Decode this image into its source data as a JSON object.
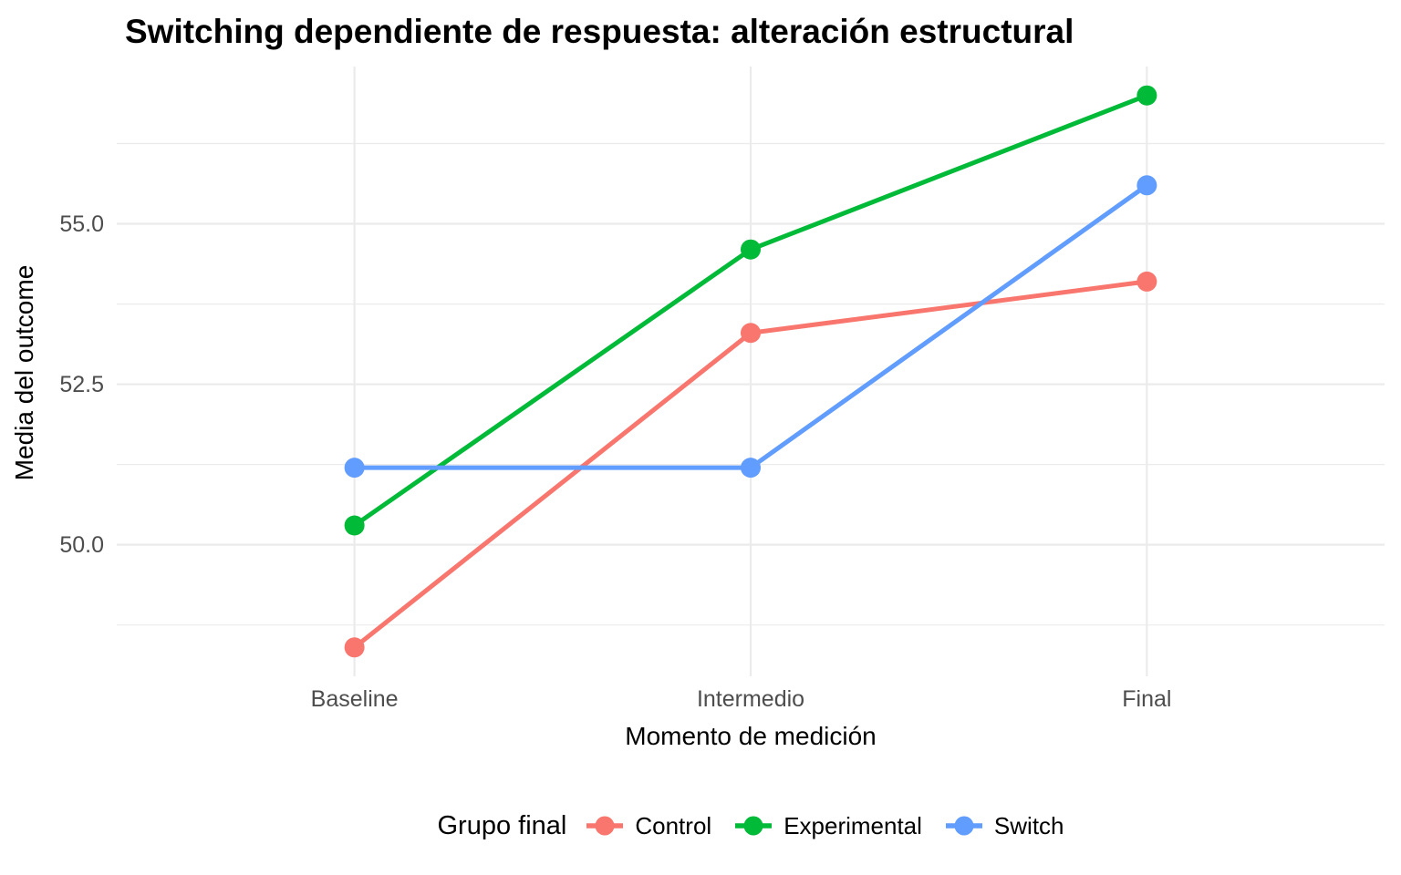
{
  "chart_data": {
    "type": "line",
    "title": "Switching dependiente de respuesta: alteración estructural",
    "xlabel": "Momento de medición",
    "ylabel": "Media del outcome",
    "legend_title": "Grupo final",
    "legend_position": "bottom",
    "categories": [
      "Baseline",
      "Intermedio",
      "Final"
    ],
    "series": [
      {
        "name": "Control",
        "color": "#F8766D",
        "values": [
          48.4,
          53.3,
          54.1
        ]
      },
      {
        "name": "Experimental",
        "color": "#00BA38",
        "values": [
          50.3,
          54.6,
          57.0
        ]
      },
      {
        "name": "Switch",
        "color": "#619CFF",
        "values": [
          51.2,
          51.2,
          55.6
        ]
      }
    ],
    "y_major_ticks": [
      {
        "value": 50.0,
        "label": "50.0"
      },
      {
        "value": 52.5,
        "label": "52.5"
      },
      {
        "value": 55.0,
        "label": "55.0"
      }
    ],
    "y_minor_ticks": [
      48.75,
      51.25,
      53.75,
      56.25
    ],
    "ylim": [
      47.95,
      57.45
    ],
    "grid": "horizontal major+minor, vertical major at categories",
    "colors": {
      "grid": "#EBEBEB",
      "tick_label": "#4D4D4D",
      "axis_title": "#000000",
      "title": "#000000",
      "background": "#FFFFFF"
    }
  }
}
